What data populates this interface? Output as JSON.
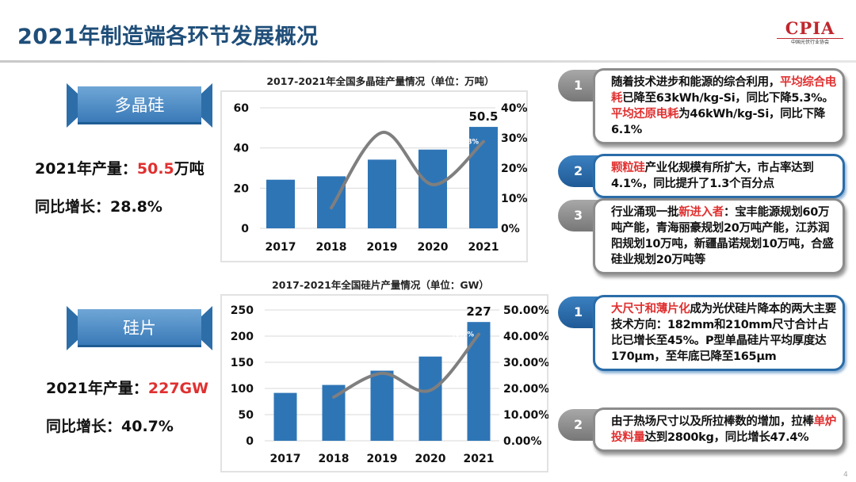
{
  "header": {
    "title": "2021年制造端各环节发展概况",
    "logo_text": "CPIA",
    "logo_sub": "中国光伏行业协会"
  },
  "poly": {
    "banner": "多晶硅",
    "output_label": "2021年产量：",
    "output_value": "50.5",
    "output_unit": "万吨",
    "growth_label": "同比增长：",
    "growth_value": "28.8%",
    "points": [
      {
        "num": "1",
        "style": "gray",
        "segments": [
          {
            "t": "随着技术进步和能源的综合利用，"
          },
          {
            "t": "平均综合电耗",
            "red": true
          },
          {
            "t": "已降至63kWh/kg-Si，同比下降5.3%。"
          },
          {
            "t": "平均还原电耗",
            "red": true
          },
          {
            "t": "为46kWh/kg-Si，同比下降6.1%"
          }
        ]
      },
      {
        "num": "2",
        "style": "blue",
        "segments": [
          {
            "t": "颗粒硅",
            "red": true
          },
          {
            "t": "产业化规模有所扩大，市占率达到4.1%，同比提升了1.3个百分点"
          }
        ]
      },
      {
        "num": "3",
        "style": "gray",
        "segments": [
          {
            "t": "行业涌现一批"
          },
          {
            "t": "新进入者",
            "red": true
          },
          {
            "t": "：宝丰能源规划60万吨产能，青海丽豪规划20万吨产能，江苏润阳规划10万吨，新疆晶诺规划10万吨，合盛硅业规划20万吨等"
          }
        ]
      }
    ]
  },
  "wafer": {
    "banner": "硅片",
    "output_label": "2021年产量：",
    "output_value": "227GW",
    "output_unit": "",
    "growth_label": "同比增长：",
    "growth_value": "40.7%",
    "points": [
      {
        "num": "1",
        "style": "blue",
        "segments": [
          {
            "t": "大尺寸和薄片化",
            "red": true
          },
          {
            "t": "成为光伏硅片降本的两大主要技术方向：182mm和210mm尺寸合计占比已增长至45%。P型单晶硅片平均厚度达170μm，至年底已降至165μm"
          }
        ]
      },
      {
        "num": "2",
        "style": "gray",
        "segments": [
          {
            "t": "由于热场尺寸以及所拉棒数的增加，拉棒"
          },
          {
            "t": "单炉投料量",
            "red": true
          },
          {
            "t": "达到2800kg，同比增长47.4%"
          }
        ]
      }
    ]
  },
  "page_number": "4",
  "chart_data": [
    {
      "type": "bar",
      "title": "2017-2021年全国多晶硅产量情况（单位：万吨）",
      "categories": [
        "2017",
        "2018",
        "2019",
        "2020",
        "2021"
      ],
      "series": [
        {
          "kind": "bar",
          "values": [
            24.2,
            25.9,
            34.2,
            39.2,
            50.5
          ],
          "color": "#2e75b6"
        },
        {
          "kind": "line",
          "axis": "right",
          "values": [
            null,
            6.8,
            31.8,
            14.5,
            28.8
          ],
          "color": "#7f7f7f"
        }
      ],
      "ylim": [
        0,
        60
      ],
      "yticks": [
        "0",
        "20",
        "40",
        "60"
      ],
      "y2lim": [
        0,
        40
      ],
      "y2ticks": [
        "0%",
        "10%",
        "20%",
        "30%",
        "40%"
      ],
      "data_labels": {
        "bar_last": "50.5",
        "line_last": "28.8%"
      },
      "grid": true
    },
    {
      "type": "bar",
      "title": "2017-2021年全国硅片产量情况（单位：GW）",
      "categories": [
        "2017",
        "2018",
        "2019",
        "2020",
        "2021"
      ],
      "series": [
        {
          "kind": "bar",
          "values": [
            91.5,
            106.7,
            134,
            161,
            227
          ],
          "color": "#2e75b6"
        },
        {
          "kind": "line",
          "axis": "right",
          "values": [
            null,
            16.7,
            25.8,
            19.3,
            40.7
          ],
          "color": "#7f7f7f"
        }
      ],
      "ylim": [
        0,
        250
      ],
      "yticks": [
        "0",
        "50",
        "100",
        "150",
        "200",
        "250"
      ],
      "y2lim": [
        0,
        50
      ],
      "y2ticks": [
        "0.00%",
        "10.00%",
        "20.00%",
        "30.00%",
        "40.00%",
        "50.00%"
      ],
      "data_labels": {
        "bar_last": "227",
        "line_last": "40.7%"
      },
      "grid": true
    }
  ]
}
